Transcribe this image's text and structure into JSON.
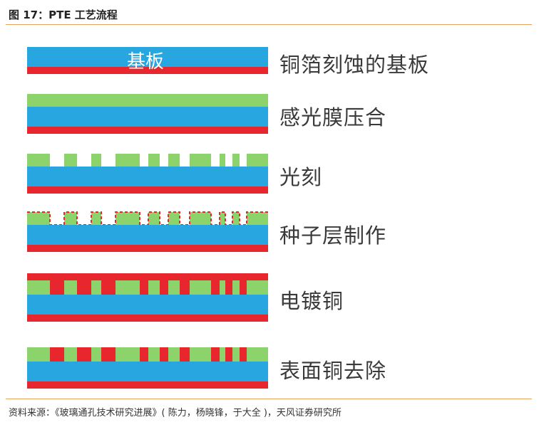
{
  "header": {
    "title": "图 17：PTE 工艺流程"
  },
  "diagram": {
    "substrate_text": "基板",
    "colors": {
      "copper": "#e8262d",
      "glass": "#27a6e0",
      "film": "#8cd36c"
    },
    "steps": [
      {
        "label": "铜箔刻蚀的基板"
      },
      {
        "label": "感光膜压合"
      },
      {
        "label": "光刻"
      },
      {
        "label": "种子层制作"
      },
      {
        "label": "电镀铜"
      },
      {
        "label": "表面铜去除"
      }
    ]
  },
  "footer": {
    "source": "资料来源：《玻璃通孔技术研究进展》( 陈力，杨晓锋，于大全 )，天风证券研究所"
  }
}
